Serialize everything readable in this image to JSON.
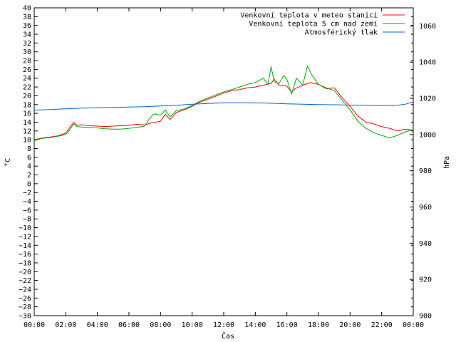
{
  "chart_data": {
    "type": "line",
    "xlabel": "Čas",
    "ylabel_left": "°C",
    "ylabel_right": "hPa",
    "x_ticks": [
      "00:00",
      "02:00",
      "04:00",
      "06:00",
      "08:00",
      "10:00",
      "12:00",
      "14:00",
      "16:00",
      "18:00",
      "20:00",
      "22:00",
      "00:00"
    ],
    "ylim_left": [
      -30,
      40
    ],
    "y_tick_step_left": 2,
    "ylim_right": [
      900,
      1070
    ],
    "y_tick_step_right": 20,
    "legend_position": "top-right",
    "grid": false,
    "x_unit": "hours",
    "series": [
      {
        "name": "Venkovní teplota v meteo stanici",
        "axis": "left",
        "color": "#ff0000",
        "x": [
          0,
          0.5,
          1,
          1.5,
          2,
          2.2,
          2.5,
          2.7,
          3,
          3.5,
          4,
          4.5,
          5,
          5.5,
          6,
          6.5,
          7,
          7.5,
          8,
          8.3,
          8.6,
          9,
          9.5,
          10,
          10.5,
          11,
          11.5,
          12,
          12.5,
          13,
          13.5,
          14,
          14.5,
          15,
          15.2,
          15.5,
          16,
          16.3,
          16.5,
          17,
          17.5,
          18,
          18.5,
          19,
          19.5,
          20,
          20.5,
          21,
          21.5,
          22,
          22.5,
          23,
          23.5,
          24
        ],
        "y": [
          10.0,
          10.4,
          10.6,
          10.9,
          11.5,
          12.5,
          14.0,
          13.3,
          13.4,
          13.2,
          13.1,
          13.0,
          13.1,
          13.2,
          13.3,
          13.5,
          13.4,
          13.9,
          14.2,
          15.8,
          14.6,
          16.2,
          16.8,
          17.6,
          18.6,
          19.2,
          19.9,
          20.6,
          21.2,
          21.4,
          21.8,
          22.0,
          22.4,
          22.8,
          23.8,
          22.4,
          22.2,
          20.8,
          21.6,
          22.4,
          23.0,
          22.6,
          21.6,
          21.8,
          19.6,
          17.6,
          15.4,
          14.0,
          13.6,
          13.0,
          12.6,
          12.0,
          12.4,
          12.2
        ]
      },
      {
        "name": "Venkovní teplota 5 cm nad zemí",
        "axis": "left",
        "color": "#00aa00",
        "x": [
          0,
          0.5,
          1,
          1.5,
          2,
          2.2,
          2.5,
          2.7,
          3,
          3.5,
          4,
          4.5,
          5,
          5.5,
          6,
          6.5,
          7,
          7.3,
          7.6,
          8,
          8.3,
          8.6,
          9,
          9.5,
          10,
          10.5,
          11,
          11.5,
          12,
          12.5,
          13,
          13.5,
          14,
          14.5,
          14.8,
          15,
          15.2,
          15.5,
          15.8,
          16,
          16.3,
          16.6,
          17,
          17.3,
          17.6,
          18,
          18.5,
          19,
          19.5,
          20,
          20.5,
          21,
          21.5,
          22,
          22.5,
          23,
          23.5,
          24
        ],
        "y": [
          9.8,
          10.3,
          10.5,
          10.8,
          11.2,
          12.0,
          13.6,
          13.0,
          12.9,
          12.8,
          12.7,
          12.5,
          12.4,
          12.4,
          12.6,
          12.8,
          13.1,
          14.8,
          15.9,
          15.6,
          16.8,
          15.2,
          16.6,
          17.0,
          17.8,
          18.8,
          19.5,
          20.2,
          20.9,
          21.4,
          22.0,
          22.6,
          23.0,
          24.0,
          22.6,
          26.6,
          23.2,
          22.8,
          24.6,
          23.8,
          20.4,
          24.0,
          22.4,
          26.8,
          24.6,
          22.6,
          21.8,
          21.2,
          19.0,
          16.8,
          14.2,
          12.6,
          11.6,
          11.0,
          10.4,
          11.0,
          11.8,
          12.3
        ]
      },
      {
        "name": "Atmosférický tlak",
        "axis": "right",
        "color": "#0066cc",
        "x": [
          0,
          1,
          2,
          3,
          4,
          5,
          6,
          7,
          8,
          9,
          10,
          11,
          12,
          13,
          14,
          15,
          16,
          17,
          18,
          19,
          20,
          21,
          22,
          23,
          23.5,
          24
        ],
        "y": [
          1013.5,
          1013.8,
          1014.2,
          1014.6,
          1014.8,
          1015.0,
          1015.2,
          1015.4,
          1015.8,
          1016.2,
          1016.8,
          1017.2,
          1017.6,
          1017.6,
          1017.5,
          1017.3,
          1017.0,
          1016.8,
          1016.6,
          1016.5,
          1016.3,
          1016.2,
          1016.0,
          1016.2,
          1016.8,
          1018.0
        ]
      }
    ]
  }
}
